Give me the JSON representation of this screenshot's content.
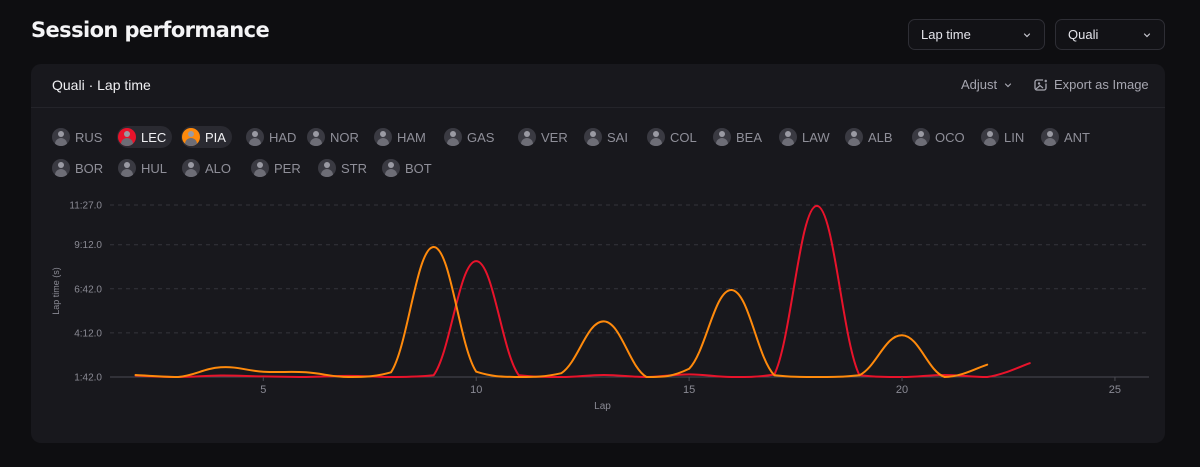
{
  "page": {
    "title": "Session performance"
  },
  "selects": {
    "metric": {
      "value": "Lap time"
    },
    "session": {
      "value": "Quali"
    }
  },
  "card": {
    "title": "Quali · Lap time",
    "adjust_label": "Adjust",
    "export_label": "Export as Image"
  },
  "drivers": [
    {
      "code": "RUS",
      "active": false,
      "color": "#3a3a42"
    },
    {
      "code": "LEC",
      "active": true,
      "color": "#e8132b"
    },
    {
      "code": "PIA",
      "active": true,
      "color": "#ff8a0c"
    },
    {
      "code": "HAD",
      "active": false,
      "color": "#3a3a42"
    },
    {
      "code": "NOR",
      "active": false,
      "color": "#3a3a42"
    },
    {
      "code": "HAM",
      "active": false,
      "color": "#3a3a42"
    },
    {
      "code": "GAS",
      "active": false,
      "color": "#3a3a42"
    },
    {
      "code": "VER",
      "active": false,
      "color": "#3a3a42"
    },
    {
      "code": "SAI",
      "active": false,
      "color": "#3a3a42"
    },
    {
      "code": "COL",
      "active": false,
      "color": "#3a3a42"
    },
    {
      "code": "BEA",
      "active": false,
      "color": "#3a3a42"
    },
    {
      "code": "LAW",
      "active": false,
      "color": "#3a3a42"
    },
    {
      "code": "ALB",
      "active": false,
      "color": "#3a3a42"
    },
    {
      "code": "OCO",
      "active": false,
      "color": "#3a3a42"
    },
    {
      "code": "LIN",
      "active": false,
      "color": "#3a3a42"
    },
    {
      "code": "ANT",
      "active": false,
      "color": "#3a3a42"
    },
    {
      "code": "BOR",
      "active": false,
      "color": "#3a3a42"
    },
    {
      "code": "HUL",
      "active": false,
      "color": "#3a3a42"
    },
    {
      "code": "ALO",
      "active": false,
      "color": "#3a3a42"
    },
    {
      "code": "PER",
      "active": false,
      "color": "#3a3a42"
    },
    {
      "code": "STR",
      "active": false,
      "color": "#3a3a42"
    },
    {
      "code": "BOT",
      "active": false,
      "color": "#3a3a42"
    }
  ],
  "icons": {
    "adjust": "chevron-down-icon",
    "export": "image-export-icon",
    "select": "chevron-down-icon"
  },
  "chart_data": {
    "type": "line",
    "xlabel": "Lap",
    "ylabel": "Lap time (s)",
    "xlim": [
      1.4,
      25.8
    ],
    "ylim": [
      102,
      687
    ],
    "x_ticks": [
      5,
      10,
      15,
      20,
      25
    ],
    "y_ticks": [
      102,
      252,
      402,
      552,
      687
    ],
    "y_tick_labels": [
      "1:42.0",
      "4:12.0",
      "6:42.0",
      "9:12.0",
      "11:27.0"
    ],
    "grid": "horizontal dashed",
    "series": [
      {
        "name": "LEC",
        "color": "#e8132b",
        "x": [
          2,
          3,
          4,
          5,
          6,
          7,
          8,
          9,
          10,
          11,
          12,
          13,
          14,
          15,
          16,
          17,
          18,
          19,
          20,
          21,
          22,
          23
        ],
        "y": [
          107,
          102,
          107,
          104,
          102,
          106,
          102,
          108,
          496,
          108,
          102,
          109,
          102,
          111,
          102,
          110,
          684,
          108,
          102,
          109,
          102,
          149
        ]
      },
      {
        "name": "PIA",
        "color": "#ff8a0c",
        "x": [
          2,
          3,
          4,
          5,
          6,
          7,
          8,
          9,
          10,
          11,
          12,
          13,
          14,
          15,
          16,
          17,
          18,
          19,
          20,
          21,
          22
        ],
        "y": [
          109,
          102,
          135,
          120,
          118,
          102,
          118,
          544,
          120,
          102,
          115,
          291,
          102,
          130,
          398,
          108,
          102,
          108,
          244,
          102,
          144
        ]
      }
    ]
  }
}
